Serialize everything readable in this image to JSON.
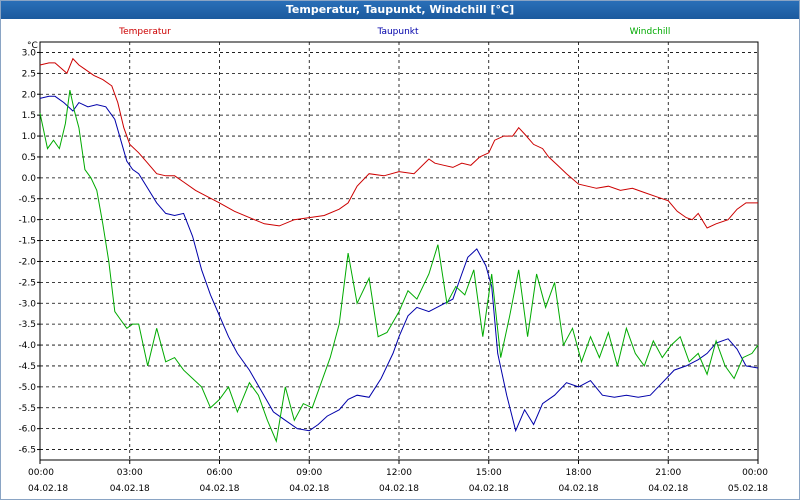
{
  "window": {
    "title": "Temperatur, Taupunkt, Windchill [°C]"
  },
  "chart_data": {
    "type": "line",
    "title": "Temperatur, Taupunkt, Windchill [°C]",
    "ylabel": "°C",
    "ylim": [
      -6.75,
      3.25
    ],
    "xlim": [
      0,
      24
    ],
    "grid": true,
    "legend": "top",
    "y_ticks": [
      "3.0",
      "2.5",
      "2.0",
      "1.5",
      "1.0",
      "0.5",
      "0.0",
      "-0.5",
      "-1.0",
      "-1.5",
      "-2.0",
      "-2.5",
      "-3.0",
      "-3.5",
      "-4.0",
      "-4.5",
      "-5.0",
      "-5.5",
      "-6.0",
      "-6.5"
    ],
    "x_ticks": [
      {
        "time": "00:00",
        "date": "04.02.18"
      },
      {
        "time": "03:00",
        "date": "04.02.18"
      },
      {
        "time": "06:00",
        "date": "04.02.18"
      },
      {
        "time": "09:00",
        "date": "04.02.18"
      },
      {
        "time": "12:00",
        "date": "04.02.18"
      },
      {
        "time": "15:00",
        "date": "04.02.18"
      },
      {
        "time": "18:00",
        "date": "04.02.18"
      },
      {
        "time": "21:00",
        "date": "04.02.18"
      },
      {
        "time": "00:00",
        "date": "05.02.18"
      }
    ],
    "series": [
      {
        "name": "Temperatur",
        "color": "#cc0000",
        "x": [
          0,
          0.3,
          0.5,
          0.9,
          1.1,
          1.3,
          1.5,
          1.8,
          2.1,
          2.4,
          2.6,
          2.8,
          3.0,
          3.3,
          3.6,
          3.9,
          4.2,
          4.5,
          4.8,
          5.2,
          5.6,
          6.0,
          6.5,
          7.0,
          7.5,
          8.0,
          8.5,
          9.0,
          9.5,
          10.0,
          10.3,
          10.6,
          11.0,
          11.5,
          12.0,
          12.5,
          13.0,
          13.2,
          13.5,
          13.8,
          14.1,
          14.4,
          14.7,
          15.0,
          15.2,
          15.5,
          15.8,
          16.0,
          16.2,
          16.5,
          16.8,
          17.0,
          17.3,
          17.6,
          18.0,
          18.3,
          18.6,
          19.0,
          19.4,
          19.8,
          20.2,
          20.6,
          21.0,
          21.3,
          21.6,
          21.8,
          22.0,
          22.3,
          22.6,
          23.0,
          23.3,
          23.6,
          24.0
        ],
        "values": [
          2.7,
          2.75,
          2.75,
          2.5,
          2.85,
          2.7,
          2.6,
          2.45,
          2.35,
          2.2,
          1.8,
          1.2,
          0.8,
          0.6,
          0.35,
          0.1,
          0.05,
          0.05,
          -0.1,
          -0.3,
          -0.45,
          -0.6,
          -0.8,
          -0.95,
          -1.1,
          -1.15,
          -1.0,
          -0.95,
          -0.9,
          -0.75,
          -0.6,
          -0.2,
          0.1,
          0.05,
          0.15,
          0.1,
          0.45,
          0.35,
          0.3,
          0.25,
          0.35,
          0.3,
          0.5,
          0.6,
          0.9,
          1.0,
          1.0,
          1.2,
          1.05,
          0.8,
          0.7,
          0.5,
          0.3,
          0.1,
          -0.15,
          -0.2,
          -0.25,
          -0.2,
          -0.3,
          -0.25,
          -0.35,
          -0.45,
          -0.55,
          -0.8,
          -0.95,
          -1.0,
          -0.85,
          -1.2,
          -1.1,
          -1.0,
          -0.75,
          -0.6,
          -0.6
        ]
      },
      {
        "name": "Taupunkt",
        "color": "#0000aa",
        "x": [
          0,
          0.3,
          0.5,
          0.8,
          1.1,
          1.3,
          1.6,
          1.9,
          2.2,
          2.5,
          2.7,
          2.9,
          3.1,
          3.3,
          3.6,
          3.9,
          4.2,
          4.5,
          4.8,
          5.1,
          5.4,
          5.7,
          6.0,
          6.3,
          6.6,
          7.0,
          7.4,
          7.8,
          8.2,
          8.6,
          9.0,
          9.3,
          9.6,
          10.0,
          10.3,
          10.6,
          11.0,
          11.4,
          11.8,
          12.0,
          12.3,
          12.6,
          13.0,
          13.4,
          13.8,
          14.1,
          14.3,
          14.6,
          14.9,
          15.1,
          15.3,
          15.6,
          15.9,
          16.2,
          16.5,
          16.8,
          17.2,
          17.6,
          18.0,
          18.4,
          18.8,
          19.2,
          19.6,
          20.0,
          20.4,
          20.8,
          21.2,
          21.6,
          22.0,
          22.3,
          22.6,
          23.0,
          23.3,
          23.6,
          24.0
        ],
        "values": [
          1.9,
          1.95,
          1.95,
          1.8,
          1.6,
          1.8,
          1.7,
          1.75,
          1.7,
          1.4,
          0.9,
          0.4,
          0.2,
          0.1,
          -0.25,
          -0.6,
          -0.85,
          -0.9,
          -0.85,
          -1.4,
          -2.2,
          -2.8,
          -3.3,
          -3.8,
          -4.2,
          -4.6,
          -5.1,
          -5.6,
          -5.8,
          -6.0,
          -6.05,
          -5.9,
          -5.7,
          -5.55,
          -5.3,
          -5.2,
          -5.25,
          -4.8,
          -4.2,
          -3.8,
          -3.3,
          -3.1,
          -3.2,
          -3.05,
          -2.9,
          -2.3,
          -1.9,
          -1.7,
          -2.1,
          -2.6,
          -4.2,
          -5.2,
          -6.05,
          -5.55,
          -5.9,
          -5.4,
          -5.2,
          -4.9,
          -5.0,
          -4.85,
          -5.2,
          -5.25,
          -5.2,
          -5.25,
          -5.2,
          -4.9,
          -4.6,
          -4.5,
          -4.35,
          -4.2,
          -3.95,
          -3.85,
          -4.1,
          -4.5,
          -4.55
        ]
      },
      {
        "name": "Windchill",
        "color": "#00aa00",
        "x": [
          0,
          0.25,
          0.45,
          0.65,
          0.85,
          1.0,
          1.15,
          1.3,
          1.5,
          1.7,
          1.9,
          2.1,
          2.3,
          2.5,
          2.7,
          2.9,
          3.1,
          3.3,
          3.6,
          3.9,
          4.2,
          4.5,
          4.8,
          5.1,
          5.4,
          5.7,
          6.0,
          6.3,
          6.6,
          7.0,
          7.3,
          7.6,
          7.9,
          8.2,
          8.5,
          8.8,
          9.1,
          9.4,
          9.7,
          10.0,
          10.3,
          10.6,
          11.0,
          11.3,
          11.6,
          12.0,
          12.3,
          12.6,
          13.0,
          13.3,
          13.6,
          13.9,
          14.2,
          14.5,
          14.8,
          15.1,
          15.4,
          15.7,
          16.0,
          16.3,
          16.6,
          16.9,
          17.2,
          17.5,
          17.8,
          18.1,
          18.4,
          18.7,
          19.0,
          19.3,
          19.6,
          19.9,
          20.2,
          20.5,
          20.8,
          21.1,
          21.4,
          21.7,
          22.0,
          22.3,
          22.6,
          22.9,
          23.2,
          23.5,
          23.8,
          24.0
        ],
        "values": [
          1.55,
          0.7,
          0.9,
          0.7,
          1.3,
          2.1,
          1.6,
          1.2,
          0.2,
          0.0,
          -0.3,
          -1.1,
          -2.0,
          -3.2,
          -3.4,
          -3.6,
          -3.5,
          -3.5,
          -4.5,
          -3.6,
          -4.4,
          -4.3,
          -4.6,
          -4.8,
          -5.0,
          -5.5,
          -5.3,
          -5.0,
          -5.6,
          -4.9,
          -5.2,
          -5.8,
          -6.3,
          -5.0,
          -5.8,
          -5.4,
          -5.5,
          -4.9,
          -4.3,
          -3.5,
          -1.8,
          -3.0,
          -2.4,
          -3.8,
          -3.7,
          -3.2,
          -2.7,
          -2.9,
          -2.3,
          -1.6,
          -3.0,
          -2.6,
          -2.8,
          -2.2,
          -3.8,
          -2.3,
          -4.3,
          -3.3,
          -2.2,
          -3.8,
          -2.3,
          -3.1,
          -2.5,
          -4.0,
          -3.6,
          -4.4,
          -3.8,
          -4.3,
          -3.7,
          -4.5,
          -3.6,
          -4.2,
          -4.5,
          -3.9,
          -4.3,
          -4.0,
          -3.8,
          -4.4,
          -4.2,
          -4.7,
          -3.9,
          -4.5,
          -4.8,
          -4.3,
          -4.2,
          -4.0
        ]
      }
    ]
  }
}
